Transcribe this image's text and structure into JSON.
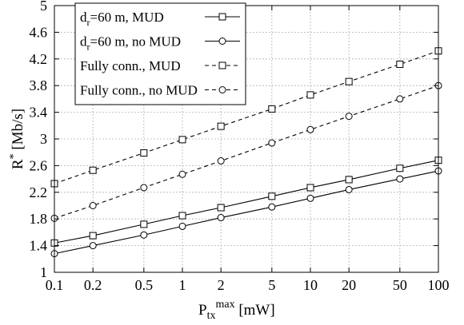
{
  "chart_data": {
    "type": "line",
    "x": [
      0.1,
      0.2,
      0.5,
      1,
      2,
      5,
      10,
      20,
      50,
      100
    ],
    "x_tick_labels": [
      "0.1",
      "0.2",
      "0.5",
      "1",
      "2",
      "5",
      "10",
      "20",
      "50",
      "100"
    ],
    "x_scale": "log",
    "xlim": [
      0.1,
      100
    ],
    "y_ticks": [
      1,
      1.4,
      1.8,
      2.2,
      2.6,
      3,
      3.4,
      3.8,
      4.2,
      4.6,
      5
    ],
    "y_tick_labels": [
      "1",
      "1.4",
      "1.8",
      "2.2",
      "2.6",
      "3",
      "3.4",
      "3.8",
      "4.2",
      "4.6",
      "5"
    ],
    "ylim": [
      1,
      5
    ],
    "grid": true,
    "legend_position": "top-left",
    "xlabel": {
      "main": "P",
      "sub": "tx",
      "sup": "max",
      "unit": "[mW]"
    },
    "ylabel": {
      "main": "R",
      "sup": "*",
      "unit": "[Mb/s]"
    },
    "series": [
      {
        "name": "dr=60 m, MUD",
        "label_parts": {
          "pre": "d",
          "sub": "r",
          "post": "=60 m, MUD"
        },
        "marker": "square",
        "dash": "solid",
        "color": "#000000",
        "values": [
          1.44,
          1.55,
          1.72,
          1.85,
          1.97,
          2.14,
          2.27,
          2.39,
          2.56,
          2.68
        ]
      },
      {
        "name": "dr=60 m, no MUD",
        "label_parts": {
          "pre": "d",
          "sub": "r",
          "post": "=60 m, no MUD"
        },
        "marker": "circle",
        "dash": "solid",
        "color": "#000000",
        "values": [
          1.28,
          1.4,
          1.56,
          1.69,
          1.82,
          1.98,
          2.11,
          2.24,
          2.4,
          2.52
        ]
      },
      {
        "name": "Fully conn., MUD",
        "label_parts": {
          "pre": "Fully conn., MUD",
          "sub": "",
          "post": ""
        },
        "marker": "square",
        "dash": "dashed",
        "color": "#000000",
        "values": [
          2.33,
          2.53,
          2.79,
          2.99,
          3.19,
          3.45,
          3.66,
          3.86,
          4.12,
          4.32
        ]
      },
      {
        "name": "Fully conn., no MUD",
        "label_parts": {
          "pre": "Fully conn., no MUD",
          "sub": "",
          "post": ""
        },
        "marker": "circle",
        "dash": "dashed",
        "color": "#000000",
        "values": [
          1.81,
          2.0,
          2.27,
          2.47,
          2.67,
          2.94,
          3.14,
          3.34,
          3.6,
          3.8
        ]
      }
    ]
  }
}
